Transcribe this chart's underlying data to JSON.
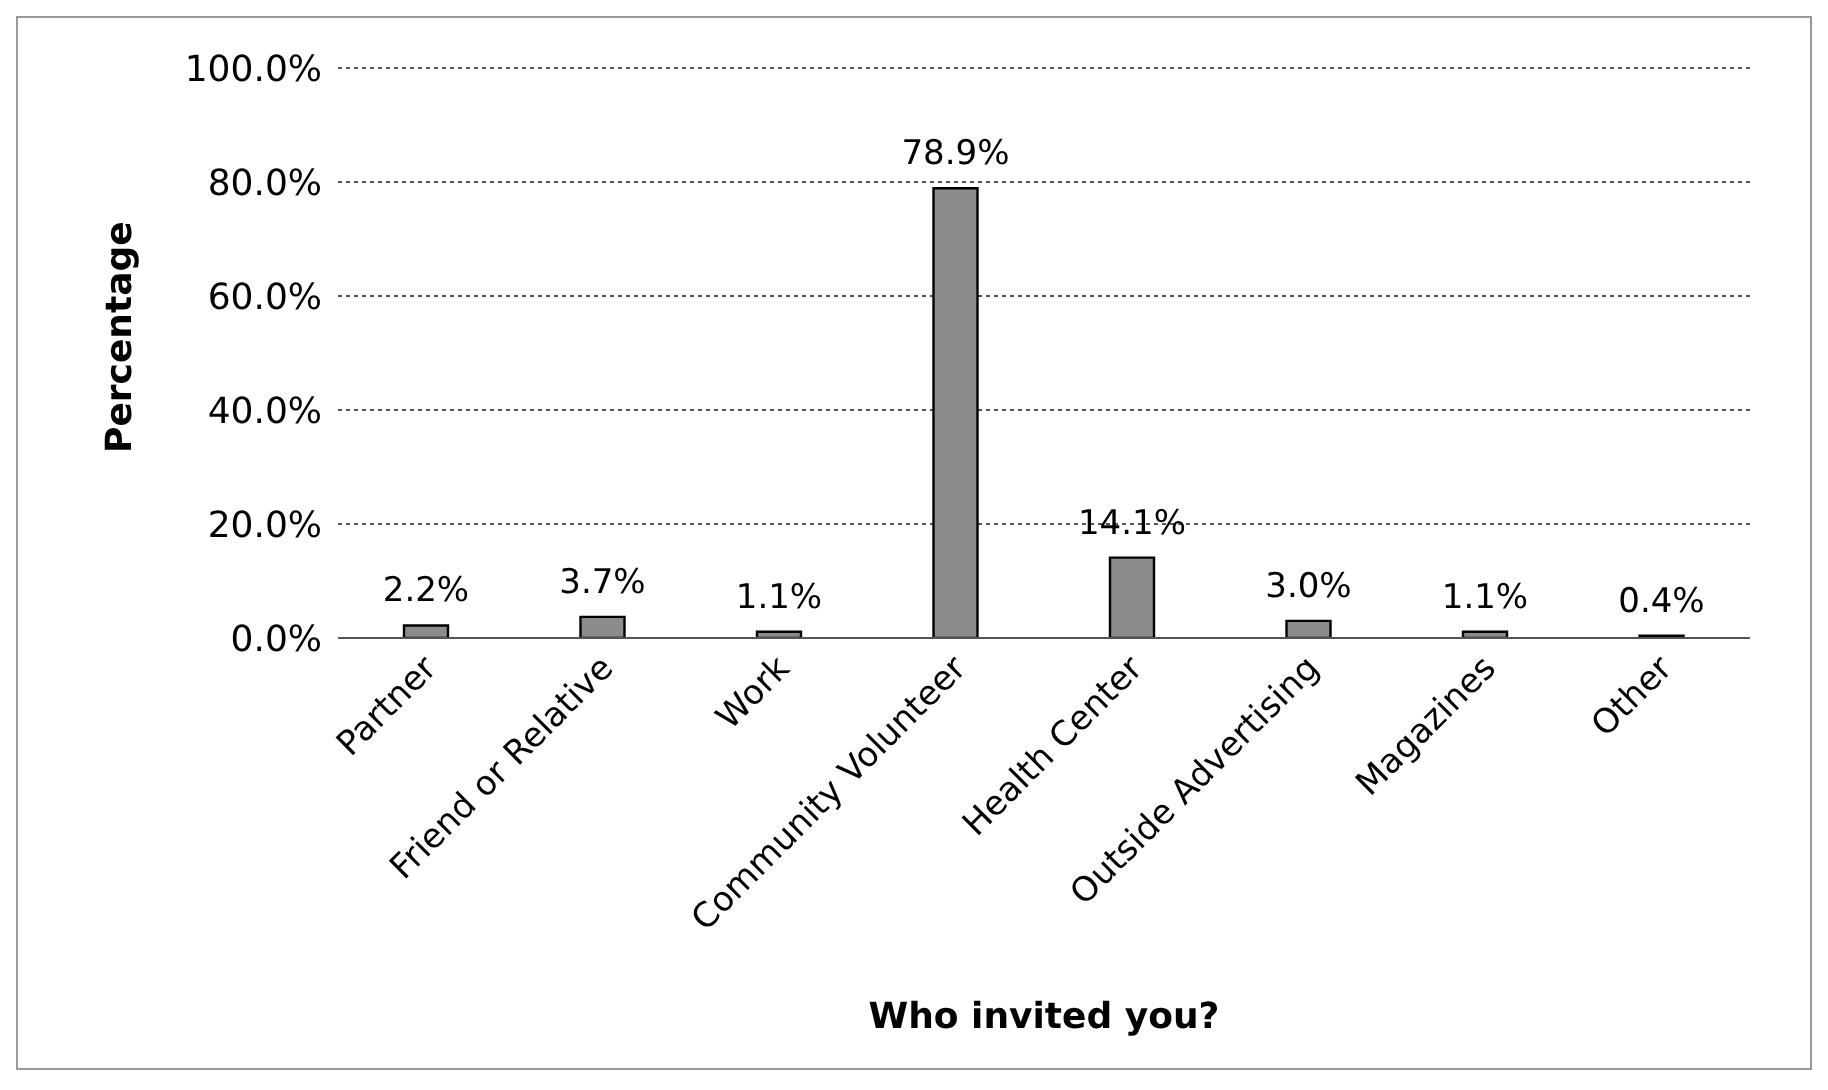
{
  "chart_data": {
    "type": "bar",
    "xlabel": "Who invited you?",
    "ylabel": "Percentage",
    "categories": [
      "Partner",
      "Friend or Relative",
      "Work",
      "Community Volunteer",
      "Health Center",
      "Outside Advertising",
      "Magazines",
      "Other"
    ],
    "values": [
      2.2,
      3.7,
      1.1,
      78.9,
      14.1,
      3.0,
      1.1,
      0.4
    ],
    "value_labels": [
      "2.2%",
      "3.7%",
      "1.1%",
      "78.9%",
      "14.1%",
      "3.0%",
      "1.1%",
      "0.4%"
    ],
    "color": "#8c8c8c",
    "ylim": [
      0,
      100
    ],
    "yticks": [
      {
        "value": 0,
        "label": "0.0%"
      },
      {
        "value": 20,
        "label": "20.0%"
      },
      {
        "value": 40,
        "label": "40.0%"
      },
      {
        "value": 60,
        "label": "60.0%"
      },
      {
        "value": 80,
        "label": "80.0%"
      },
      {
        "value": 100,
        "label": "100.0%"
      }
    ],
    "grid": "y",
    "legend": false
  }
}
